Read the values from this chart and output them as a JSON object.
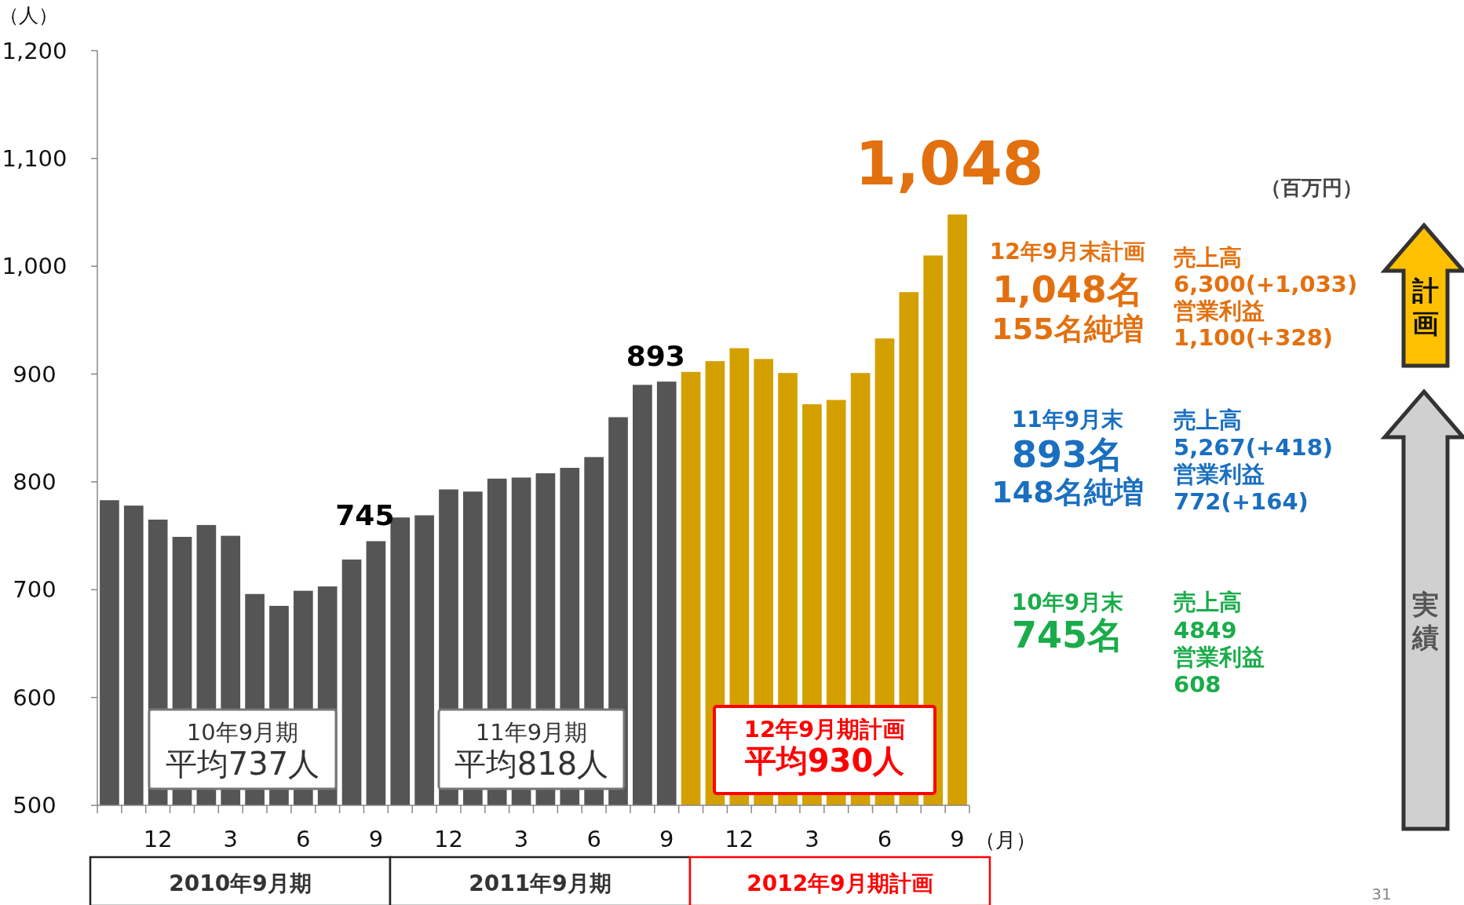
{
  "chart_data": {
    "type": "bar",
    "xlabel": "（月）",
    "ylabel": "（人）",
    "categories": [
      null,
      null,
      "12",
      null,
      null,
      "3",
      null,
      null,
      "6",
      null,
      null,
      "9",
      null,
      null,
      "12",
      null,
      null,
      "3",
      null,
      null,
      "6",
      null,
      null,
      "9",
      null,
      null,
      "12",
      null,
      null,
      "3",
      null,
      null,
      "6",
      null,
      null,
      "9"
    ],
    "values": [
      783,
      778,
      765,
      749,
      760,
      750,
      696,
      685,
      699,
      703,
      728,
      745,
      767,
      769,
      793,
      791,
      803,
      804,
      808,
      813,
      823,
      860,
      890,
      893,
      902,
      912,
      924,
      914,
      901,
      872,
      876,
      901,
      933,
      976,
      1010,
      1048
    ],
    "value_labels": [
      null,
      null,
      null,
      null,
      null,
      null,
      null,
      null,
      null,
      null,
      null,
      "745",
      null,
      null,
      null,
      null,
      null,
      null,
      null,
      null,
      null,
      null,
      null,
      "893",
      null,
      null,
      null,
      null,
      null,
      null,
      null,
      null,
      null,
      null,
      null,
      "1,048"
    ],
    "colors": [
      "#555555",
      "#555555",
      "#555555",
      "#555555",
      "#555555",
      "#555555",
      "#555555",
      "#555555",
      "#555555",
      "#555555",
      "#555555",
      "#555555",
      "#555555",
      "#555555",
      "#555555",
      "#555555",
      "#555555",
      "#555555",
      "#555555",
      "#555555",
      "#555555",
      "#555555",
      "#555555",
      "#555555",
      "#d4a000",
      "#d4a000",
      "#d4a000",
      "#d4a000",
      "#d4a000",
      "#d4a000",
      "#d4a000",
      "#d4a000",
      "#d4a000",
      "#d4a000",
      "#d4a000",
      "#d4a000"
    ],
    "ylim": [
      500,
      1200
    ],
    "yticks": [
      500,
      600,
      700,
      800,
      900,
      {
        "value": 1000,
        "label": "1,000"
      },
      {
        "value": 1100,
        "label": "1,100"
      },
      {
        "value": 1200,
        "label": "1,200"
      }
    ],
    "grid": false,
    "annotations": [
      "10年9月期",
      "平均737人",
      "11年9月期",
      "平均818人",
      "12年9月期計画",
      "平均930人",
      "2010年9月期",
      "2011年9月期",
      "2012年9月期計画",
      "（百万円）",
      "12年9月末計画",
      "1,048名",
      "155名純増",
      "売上高",
      "6,300(+1,033)",
      "営業利益",
      "1,100(+328)",
      "11年9月末",
      "893名",
      "148名純増",
      "売上高",
      "5,267(+418)",
      "営業利益",
      "772(+164)",
      "10年9月末",
      "745名",
      "売上高",
      "4849",
      "営業利益",
      "608",
      "計画",
      "実績",
      "31"
    ]
  }
}
